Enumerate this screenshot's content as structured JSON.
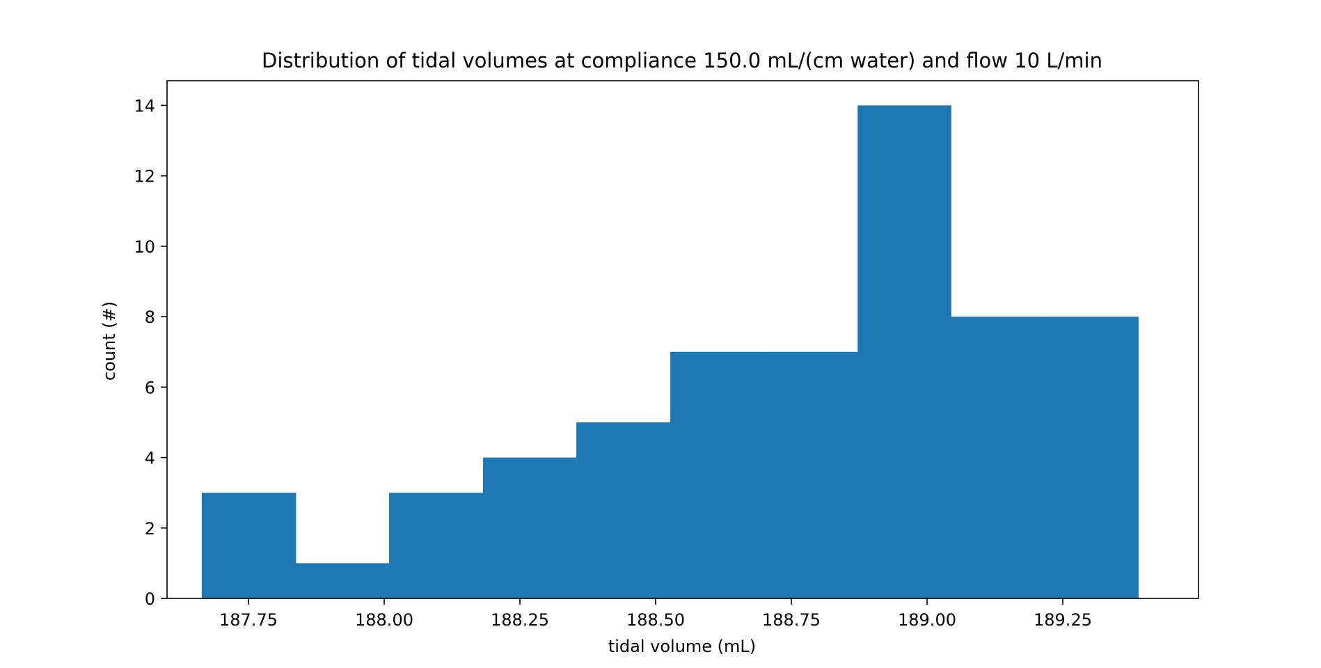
{
  "chart_data": {
    "type": "bar",
    "subtype": "histogram",
    "title": "Distribution of tidal volumes at compliance 150.0 mL/(cm water) and flow 10 L/min",
    "xlabel": "tidal volume (mL)",
    "ylabel": "count (#)",
    "bin_edges": [
      187.664,
      187.837,
      188.009,
      188.182,
      188.354,
      188.527,
      188.699,
      188.872,
      189.044,
      189.217,
      189.389
    ],
    "values": [
      3,
      1,
      3,
      4,
      5,
      7,
      7,
      14,
      8,
      8
    ],
    "xlim": [
      187.6,
      189.5
    ],
    "ylim": [
      0,
      14.7
    ],
    "xticks": [
      187.75,
      188.0,
      188.25,
      188.5,
      188.75,
      189.0,
      189.25
    ],
    "xtick_labels": [
      "187.75",
      "188.00",
      "188.25",
      "188.50",
      "188.75",
      "189.00",
      "189.25"
    ],
    "yticks": [
      0,
      2,
      4,
      6,
      8,
      10,
      12,
      14
    ],
    "ytick_labels": [
      "0",
      "2",
      "4",
      "6",
      "8",
      "10",
      "12",
      "14"
    ],
    "bar_color": "#1f77b4",
    "grid": false,
    "legend": false
  }
}
